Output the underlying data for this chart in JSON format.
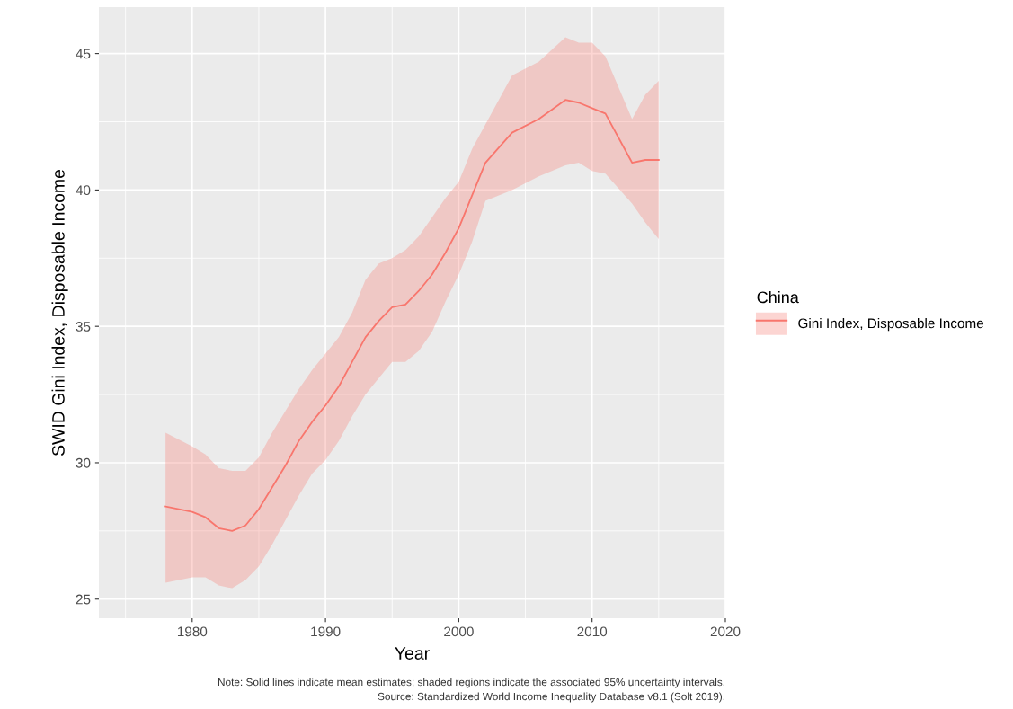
{
  "chart_data": {
    "type": "line",
    "xlabel": "Year",
    "ylabel": "SWID Gini Index, Disposable Income",
    "legend_title": "China",
    "x": [
      1978,
      1980,
      1981,
      1982,
      1983,
      1984,
      1985,
      1986,
      1987,
      1988,
      1989,
      1990,
      1991,
      1992,
      1993,
      1994,
      1995,
      1996,
      1997,
      1998,
      1999,
      2000,
      2001,
      2002,
      2004,
      2006,
      2008,
      2009,
      2010,
      2011,
      2013,
      2014,
      2015
    ],
    "series": [
      {
        "name": "Gini Index, Disposable Income",
        "color": "#f8766d",
        "values": [
          28.4,
          28.2,
          28.0,
          27.6,
          27.5,
          27.7,
          28.3,
          29.1,
          29.9,
          30.8,
          31.5,
          32.1,
          32.8,
          33.7,
          34.6,
          35.2,
          35.7,
          35.8,
          36.3,
          36.9,
          37.7,
          38.6,
          39.8,
          41.0,
          42.1,
          42.6,
          43.3,
          43.2,
          43.0,
          42.8,
          41.0,
          41.1,
          41.1
        ],
        "lower": [
          25.6,
          25.8,
          25.8,
          25.5,
          25.4,
          25.7,
          26.2,
          27.0,
          27.9,
          28.8,
          29.6,
          30.1,
          30.8,
          31.7,
          32.5,
          33.1,
          33.7,
          33.7,
          34.1,
          34.8,
          35.9,
          36.9,
          38.1,
          39.6,
          40.0,
          40.5,
          40.9,
          41.0,
          40.7,
          40.6,
          39.5,
          38.8,
          38.2
        ],
        "upper": [
          31.1,
          30.6,
          30.3,
          29.8,
          29.7,
          29.7,
          30.2,
          31.1,
          31.9,
          32.7,
          33.4,
          34.0,
          34.6,
          35.5,
          36.7,
          37.3,
          37.5,
          37.8,
          38.3,
          39.0,
          39.7,
          40.3,
          41.5,
          42.4,
          44.2,
          44.7,
          45.6,
          45.4,
          45.4,
          44.9,
          42.6,
          43.5,
          44.0
        ]
      }
    ],
    "xlim": [
      1973,
      2020
    ],
    "xticks": [
      1980,
      1990,
      2000,
      2010,
      2020
    ],
    "ylim": [
      24.3,
      46.7
    ],
    "yticks": [
      25,
      30,
      35,
      40,
      45
    ],
    "grid": true,
    "legend": "right",
    "marker": "none",
    "line_style": "solid",
    "annotations": [
      "Note: Solid lines indicate mean estimates; shaded regions indicate the associated 95% uncertainty intervals.",
      "Source: Standardized World Income Inequality Database v8.1 (Solt 2019)."
    ]
  }
}
